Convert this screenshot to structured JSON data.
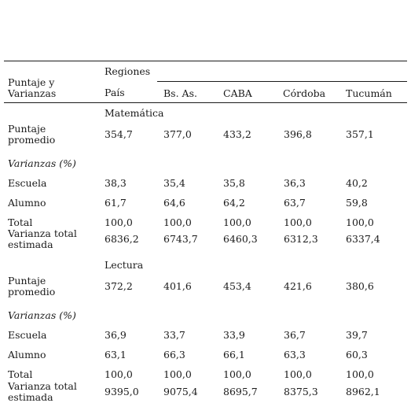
{
  "header": {
    "stub": [
      "Puntaje y",
      "Varianzas"
    ],
    "group": "Regiones",
    "columns": [
      "País",
      "Bs. As.",
      "CABA",
      "Córdoba",
      "Tucumán"
    ]
  },
  "sections": [
    {
      "label": "Matemática",
      "rows": [
        {
          "label": [
            "Puntaje",
            "promedio"
          ],
          "values": [
            "354,7",
            "377,0",
            "433,2",
            "396,8",
            "357,1"
          ]
        },
        {
          "label": [
            "Varianzas (%)"
          ],
          "italic": true,
          "values": []
        },
        {
          "label": [
            "Escuela"
          ],
          "values": [
            "38,3",
            "35,4",
            "35,8",
            "36,3",
            "40,2"
          ]
        },
        {
          "label": [
            "Alumno"
          ],
          "values": [
            "61,7",
            "64,6",
            "64,2",
            "63,7",
            "59,8"
          ]
        },
        {
          "label": [
            "Total"
          ],
          "values": [
            "100,0",
            "100,0",
            "100,0",
            "100,0",
            "100,0"
          ]
        },
        {
          "label": [
            "Varianza total",
            "estimada"
          ],
          "values": [
            "6836,2",
            "6743,7",
            "6460,3",
            "6312,3",
            "6337,4"
          ]
        }
      ]
    },
    {
      "label": "Lectura",
      "rows": [
        {
          "label": [
            "Puntaje",
            "promedio"
          ],
          "values": [
            "372,2",
            "401,6",
            "453,4",
            "421,6",
            "380,6"
          ]
        },
        {
          "label": [
            "Varianzas (%)"
          ],
          "italic": true,
          "values": []
        },
        {
          "label": [
            "Escuela"
          ],
          "values": [
            "36,9",
            "33,7",
            "33,9",
            "36,7",
            "39,7"
          ]
        },
        {
          "label": [
            "Alumno"
          ],
          "values": [
            "63,1",
            "66,3",
            "66,1",
            "63,3",
            "60,3"
          ]
        },
        {
          "label": [
            "Total"
          ],
          "values": [
            "100,0",
            "100,0",
            "100,0",
            "100,0",
            "100,0"
          ]
        },
        {
          "label": [
            "Varianza total",
            "estimada"
          ],
          "values": [
            "9395,0",
            "9075,4",
            "8695,7",
            "8375,3",
            "8962,1"
          ]
        }
      ]
    }
  ]
}
